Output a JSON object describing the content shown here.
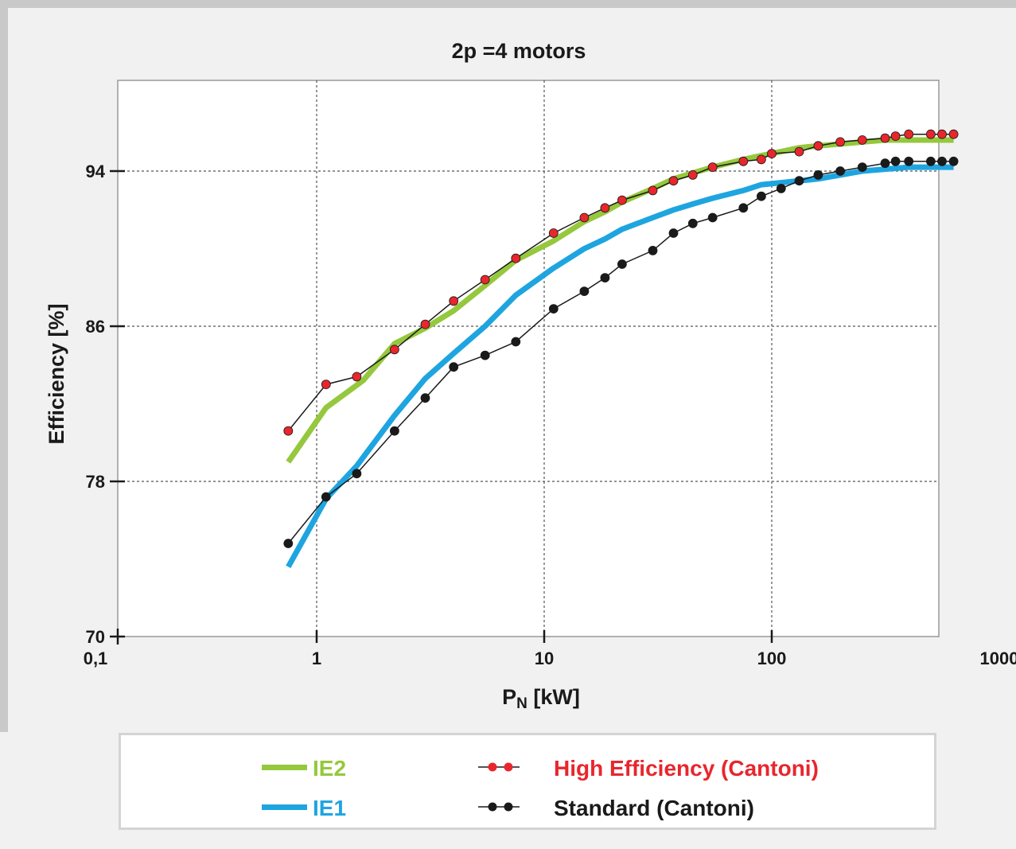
{
  "chart_data": {
    "type": "line",
    "title": "2p =4 motors",
    "xlabel_main": "P",
    "xlabel_sub": "N",
    "xlabel_rest": " [kW]",
    "ylabel": "Efficiency [%]",
    "x_scale": "log",
    "xlim": [
      0.1,
      1000
    ],
    "ylim": [
      70,
      98
    ],
    "x_ticks": [
      {
        "value": 0.1,
        "label": "0,1"
      },
      {
        "value": 1,
        "label": "1"
      },
      {
        "value": 10,
        "label": "10"
      },
      {
        "value": 100,
        "label": "100"
      },
      {
        "value": 1000,
        "label": "1000"
      }
    ],
    "y_ticks": [
      {
        "value": 70,
        "label": "70"
      },
      {
        "value": 78,
        "label": "78"
      },
      {
        "value": 86,
        "label": "86"
      },
      {
        "value": 94,
        "label": "94"
      }
    ],
    "grid": true,
    "legend_position": "bottom",
    "series": [
      {
        "name": "IE2",
        "style": "thick-line",
        "color": "#95c83d",
        "points": [
          [
            0.75,
            79.0
          ],
          [
            1.1,
            81.8
          ],
          [
            1.6,
            83.2
          ],
          [
            2.2,
            85.1
          ],
          [
            3.0,
            85.9
          ],
          [
            4.0,
            86.8
          ],
          [
            5.5,
            88.1
          ],
          [
            7.5,
            89.4
          ],
          [
            11,
            90.4
          ],
          [
            15,
            91.4
          ],
          [
            18.5,
            91.9
          ],
          [
            22,
            92.4
          ],
          [
            30,
            93.1
          ],
          [
            37,
            93.6
          ],
          [
            45,
            93.9
          ],
          [
            55,
            94.2
          ],
          [
            75,
            94.6
          ],
          [
            90,
            94.8
          ],
          [
            110,
            95.0
          ],
          [
            132,
            95.2
          ],
          [
            160,
            95.3
          ],
          [
            200,
            95.4
          ],
          [
            250,
            95.5
          ],
          [
            315,
            95.6
          ],
          [
            400,
            95.6
          ],
          [
            500,
            95.6
          ],
          [
            630,
            95.6
          ]
        ]
      },
      {
        "name": "IE1",
        "style": "thick-line",
        "color": "#1ea5e0",
        "points": [
          [
            0.75,
            73.6
          ],
          [
            1.1,
            77.1
          ],
          [
            1.5,
            78.8
          ],
          [
            2.2,
            81.4
          ],
          [
            3.0,
            83.3
          ],
          [
            4.0,
            84.6
          ],
          [
            5.5,
            86.0
          ],
          [
            7.5,
            87.6
          ],
          [
            11,
            89.0
          ],
          [
            15,
            90.0
          ],
          [
            18.5,
            90.5
          ],
          [
            22,
            91.0
          ],
          [
            30,
            91.6
          ],
          [
            37,
            92.0
          ],
          [
            45,
            92.3
          ],
          [
            55,
            92.6
          ],
          [
            75,
            93.0
          ],
          [
            90,
            93.3
          ],
          [
            110,
            93.4
          ],
          [
            132,
            93.5
          ],
          [
            160,
            93.6
          ],
          [
            200,
            93.8
          ],
          [
            250,
            94.0
          ],
          [
            315,
            94.1
          ],
          [
            400,
            94.2
          ],
          [
            500,
            94.2
          ],
          [
            630,
            94.2
          ]
        ]
      },
      {
        "name": "High Efficiency (Cantoni)",
        "style": "marker-line",
        "color": "#e8262d",
        "points": [
          [
            0.75,
            80.6
          ],
          [
            1.1,
            83.0
          ],
          [
            1.5,
            83.4
          ],
          [
            2.2,
            84.8
          ],
          [
            3.0,
            86.1
          ],
          [
            4.0,
            87.3
          ],
          [
            5.5,
            88.4
          ],
          [
            7.5,
            89.5
          ],
          [
            11,
            90.8
          ],
          [
            15,
            91.6
          ],
          [
            18.5,
            92.1
          ],
          [
            22,
            92.5
          ],
          [
            30,
            93.0
          ],
          [
            37,
            93.5
          ],
          [
            45,
            93.8
          ],
          [
            55,
            94.2
          ],
          [
            75,
            94.5
          ],
          [
            90,
            94.6
          ],
          [
            100,
            94.9
          ],
          [
            132,
            95.0
          ],
          [
            160,
            95.3
          ],
          [
            200,
            95.5
          ],
          [
            250,
            95.6
          ],
          [
            315,
            95.7
          ],
          [
            350,
            95.8
          ],
          [
            400,
            95.9
          ],
          [
            500,
            95.9
          ],
          [
            560,
            95.9
          ],
          [
            630,
            95.9
          ]
        ]
      },
      {
        "name": "Standard (Cantoni)",
        "style": "marker-line",
        "color": "#1a1a1a",
        "points": [
          [
            0.75,
            74.8
          ],
          [
            1.1,
            77.2
          ],
          [
            1.5,
            78.4
          ],
          [
            2.2,
            80.6
          ],
          [
            3.0,
            82.3
          ],
          [
            4.0,
            83.9
          ],
          [
            5.5,
            84.5
          ],
          [
            7.5,
            85.2
          ],
          [
            11,
            86.9
          ],
          [
            15,
            87.8
          ],
          [
            18.5,
            88.5
          ],
          [
            22,
            89.2
          ],
          [
            30,
            89.9
          ],
          [
            37,
            90.8
          ],
          [
            45,
            91.3
          ],
          [
            55,
            91.6
          ],
          [
            75,
            92.1
          ],
          [
            90,
            92.7
          ],
          [
            110,
            93.1
          ],
          [
            132,
            93.5
          ],
          [
            160,
            93.8
          ],
          [
            200,
            94.0
          ],
          [
            250,
            94.2
          ],
          [
            315,
            94.4
          ],
          [
            350,
            94.5
          ],
          [
            400,
            94.5
          ],
          [
            500,
            94.5
          ],
          [
            560,
            94.5
          ],
          [
            630,
            94.5
          ]
        ]
      }
    ]
  },
  "legend": {
    "items": [
      {
        "label": "IE2",
        "color": "#95c83d"
      },
      {
        "label": "IE1",
        "color": "#1ea5e0"
      },
      {
        "label": "High Efficiency (Cantoni)",
        "color": "#e8262d"
      },
      {
        "label": "Standard (Cantoni)",
        "color": "#1a1a1a"
      }
    ]
  }
}
